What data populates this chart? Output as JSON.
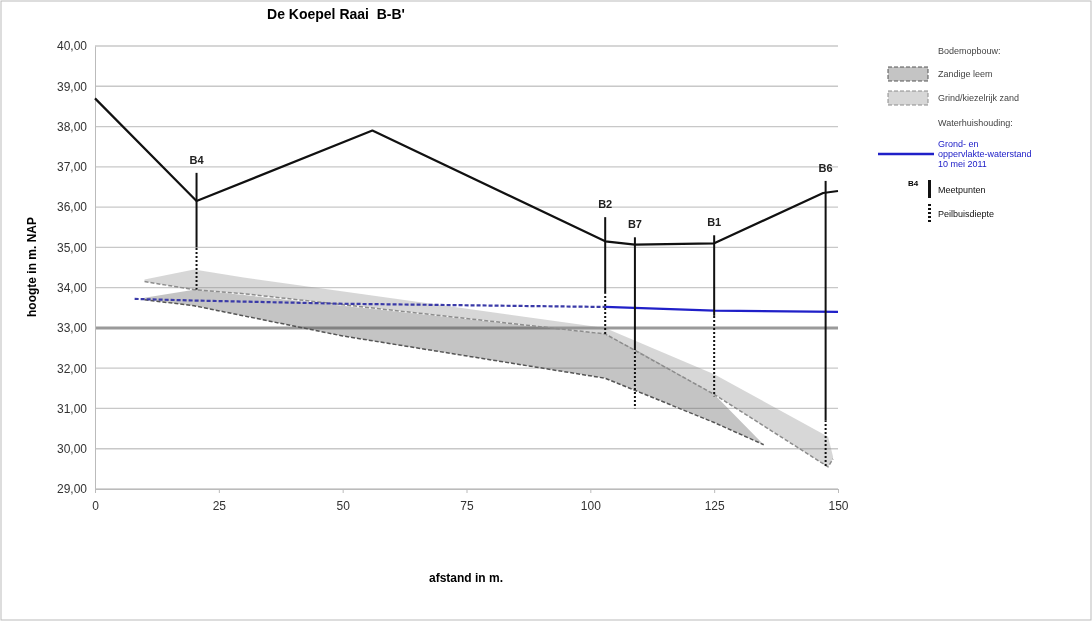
{
  "chart_data": {
    "type": "line",
    "title": "De Koepel Raai  B-B'",
    "xlabel": "afstand in m.",
    "ylabel": "hoogte in m. NAP",
    "xlim": [
      0,
      150
    ],
    "xticks": [
      0,
      25,
      50,
      75,
      100,
      125,
      150
    ],
    "ylim": [
      29,
      40
    ],
    "yticks": [
      {
        "value": 29,
        "label": "29,00"
      },
      {
        "value": 30,
        "label": "30,00"
      },
      {
        "value": 31,
        "label": "31,00"
      },
      {
        "value": 32,
        "label": "32,00"
      },
      {
        "value": 33,
        "label": "33,00"
      },
      {
        "value": 34,
        "label": "34,00"
      },
      {
        "value": 35,
        "label": "35,00"
      },
      {
        "value": 36,
        "label": "36,00"
      },
      {
        "value": 37,
        "label": "37,00"
      },
      {
        "value": 38,
        "label": "38,00"
      },
      {
        "value": 39,
        "label": "39,00"
      },
      {
        "value": 40,
        "label": "40,00"
      }
    ],
    "grid": "y",
    "legend": "right",
    "marker": "none",
    "ref_lines": [
      {
        "axis": "y",
        "value": 33,
        "color": "#9a9a9a"
      }
    ],
    "series": [
      {
        "name": "Zandige leem",
        "color": "#555555",
        "line_style": "dashed",
        "x": [
          10,
          20,
          50,
          103,
          110,
          125,
          135
        ],
        "values": [
          33.7,
          33.55,
          32.8,
          31.75,
          31.4,
          30.65,
          30.1
        ],
        "lower": [
          33.7,
          33.55,
          32.8,
          31.75,
          31.4,
          30.65,
          30.1
        ],
        "upper": [
          33.75,
          33.95,
          33.55,
          32.85,
          32.4,
          31.35,
          30.1
        ]
      },
      {
        "name": "Grind/kiezelrijk zand",
        "color": "#8c8c8c",
        "line_style": "dashed",
        "x": [
          10,
          20,
          30,
          103,
          125,
          148,
          149
        ],
        "values": [
          34.15,
          33.95,
          33.85,
          32.85,
          31.35,
          29.55,
          29.75
        ],
        "lower": [
          34.15,
          33.95,
          33.85,
          32.85,
          31.35,
          29.55,
          29.75
        ],
        "upper": [
          34.2,
          34.45,
          34.25,
          33.0,
          31.85,
          30.3,
          29.8
        ]
      },
      {
        "color": "#111111",
        "line_style": "solid",
        "x": [
          0,
          20.5,
          56,
          103,
          109,
          125,
          147,
          150
        ],
        "values": [
          38.7,
          36.15,
          37.9,
          35.15,
          35.07,
          35.1,
          36.35,
          36.4
        ]
      },
      {
        "color": "#3a3aa8",
        "line_style": "dashed",
        "x": [
          8,
          20,
          50,
          103
        ],
        "values": [
          33.72,
          33.68,
          33.6,
          33.52
        ]
      },
      {
        "name": "Grond- en oppervlakte-waterstand 10 mei 2011",
        "color": "#2020c8",
        "line_style": "solid",
        "x": [
          103,
          125,
          150
        ],
        "values": [
          33.52,
          33.43,
          33.4
        ]
      },
      {
        "type": "bar",
        "name": "Meetpunten",
        "color": "#111111",
        "line_style": "solid",
        "x": [
          20.5,
          103,
          109,
          125,
          147.5
        ],
        "base": [
          35.0,
          33.85,
          32.5,
          33.3,
          30.7
        ],
        "values": [
          1.85,
          1.9,
          2.75,
          2.0,
          5.95
        ]
      },
      {
        "type": "bar",
        "name": "Peilbuisdiepte",
        "color": "#111111",
        "line_style": "dotted",
        "x": [
          20.5,
          103,
          109,
          125,
          147.5
        ],
        "base": [
          33.95,
          32.8,
          31.0,
          31.3,
          29.55
        ],
        "values": [
          1.05,
          1.05,
          1.5,
          2.0,
          1.15
        ]
      }
    ],
    "annotations": [
      "Bodemopbouw:",
      "Waterhuishouding:",
      "B4",
      {
        "text": "B4",
        "x": 20.5,
        "y": 36.85
      },
      {
        "text": "B2",
        "x": 103,
        "y": 35.75
      },
      {
        "text": "B7",
        "x": 109,
        "y": 35.25
      },
      {
        "text": "B1",
        "x": 125,
        "y": 35.3
      },
      {
        "text": "B6",
        "x": 147.5,
        "y": 36.65
      }
    ]
  }
}
